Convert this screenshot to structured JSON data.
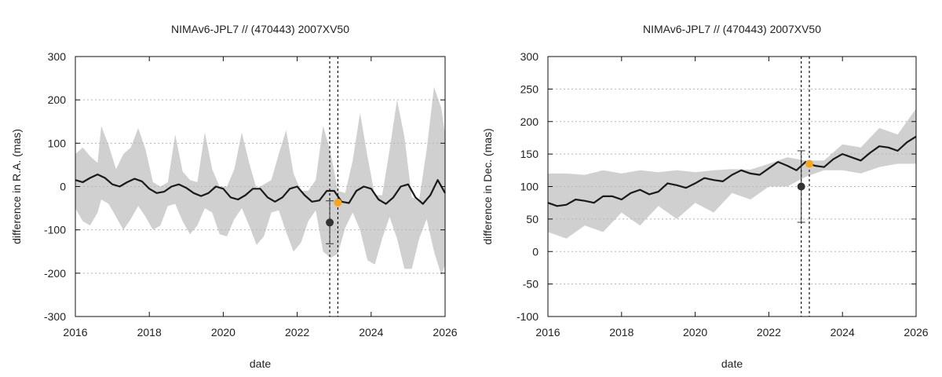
{
  "chart_data": [
    {
      "type": "line",
      "title": "NIMAv6-JPL7 // (470443) 2007XV50",
      "xlabel": "date",
      "ylabel": "difference in R.A. (mas)",
      "xlim": [
        2016,
        2026
      ],
      "ylim": [
        -300,
        300
      ],
      "xticks": [
        2016,
        2018,
        2020,
        2022,
        2024,
        2026
      ],
      "xtick_labels": [
        "2016",
        "2018",
        "2020",
        "2022",
        "2024",
        "2026"
      ],
      "yticks": [
        -300,
        -200,
        -100,
        0,
        100,
        200,
        300
      ],
      "ytick_labels": [
        "-300",
        "-200",
        "-100",
        "0",
        "100",
        "200",
        "300"
      ],
      "grid": "horizontal dotted",
      "series": [
        {
          "name": "uncertainty envelope (upper)",
          "x": [
            2016.0,
            2016.2,
            2016.4,
            2016.6,
            2016.7,
            2016.9,
            2017.1,
            2017.3,
            2017.5,
            2017.7,
            2017.9,
            2018.1,
            2018.3,
            2018.5,
            2018.7,
            2018.9,
            2019.1,
            2019.3,
            2019.5,
            2019.7,
            2019.9,
            2020.1,
            2020.3,
            2020.5,
            2020.7,
            2020.9,
            2021.1,
            2021.3,
            2021.5,
            2021.7,
            2021.9,
            2022.1,
            2022.3,
            2022.5,
            2022.7,
            2022.9,
            2023.1,
            2023.3,
            2023.5,
            2023.7,
            2023.9,
            2024.1,
            2024.3,
            2024.5,
            2024.7,
            2024.9,
            2025.1,
            2025.3,
            2025.5,
            2025.7,
            2025.9,
            2026.0
          ],
          "values": [
            75,
            90,
            70,
            55,
            140,
            95,
            40,
            75,
            90,
            135,
            85,
            10,
            0,
            10,
            120,
            35,
            15,
            10,
            125,
            40,
            0,
            0,
            40,
            125,
            55,
            -5,
            5,
            15,
            75,
            130,
            30,
            -10,
            -10,
            15,
            140,
            80,
            -10,
            -15,
            60,
            170,
            70,
            -20,
            -20,
            85,
            200,
            115,
            -25,
            -30,
            85,
            230,
            180,
            120
          ]
        },
        {
          "name": "uncertainty envelope (lower)",
          "x": [
            2016.0,
            2016.2,
            2016.4,
            2016.6,
            2016.7,
            2016.9,
            2017.1,
            2017.3,
            2017.5,
            2017.7,
            2017.9,
            2018.1,
            2018.3,
            2018.5,
            2018.7,
            2018.9,
            2019.1,
            2019.3,
            2019.5,
            2019.7,
            2019.9,
            2020.1,
            2020.3,
            2020.5,
            2020.7,
            2020.9,
            2021.1,
            2021.3,
            2021.5,
            2021.7,
            2021.9,
            2022.1,
            2022.3,
            2022.5,
            2022.7,
            2022.9,
            2023.1,
            2023.3,
            2023.5,
            2023.7,
            2023.9,
            2024.1,
            2024.3,
            2024.5,
            2024.7,
            2024.9,
            2025.1,
            2025.3,
            2025.5,
            2025.7,
            2025.9,
            2026.0
          ],
          "values": [
            -50,
            -80,
            -90,
            -60,
            -30,
            -40,
            -70,
            -100,
            -75,
            -45,
            -70,
            -100,
            -90,
            -45,
            -40,
            -80,
            -110,
            -90,
            -50,
            -60,
            -110,
            -115,
            -75,
            -50,
            -90,
            -135,
            -115,
            -60,
            -55,
            -105,
            -150,
            -130,
            -80,
            -55,
            -150,
            -165,
            -155,
            -95,
            -60,
            -100,
            -170,
            -180,
            -120,
            -70,
            -120,
            -190,
            -190,
            -120,
            -75,
            -150,
            -205,
            -180
          ]
        },
        {
          "name": "NIMAv6-JPL7 difference",
          "x": [
            2016.0,
            2016.2,
            2016.4,
            2016.6,
            2016.8,
            2017.0,
            2017.2,
            2017.4,
            2017.6,
            2017.8,
            2018.0,
            2018.2,
            2018.4,
            2018.6,
            2018.8,
            2019.0,
            2019.2,
            2019.4,
            2019.6,
            2019.8,
            2020.0,
            2020.2,
            2020.4,
            2020.6,
            2020.8,
            2021.0,
            2021.2,
            2021.4,
            2021.6,
            2021.8,
            2022.0,
            2022.2,
            2022.4,
            2022.6,
            2022.8,
            2023.0,
            2023.2,
            2023.4,
            2023.6,
            2023.8,
            2024.0,
            2024.2,
            2024.4,
            2024.6,
            2024.8,
            2025.0,
            2025.2,
            2025.4,
            2025.6,
            2025.8,
            2026.0
          ],
          "values": [
            15,
            10,
            20,
            28,
            20,
            5,
            0,
            10,
            18,
            12,
            -5,
            -15,
            -12,
            0,
            5,
            -3,
            -15,
            -22,
            -15,
            0,
            -5,
            -25,
            -30,
            -20,
            -5,
            -5,
            -25,
            -35,
            -25,
            -5,
            0,
            -20,
            -35,
            -32,
            -10,
            -10,
            -35,
            -38,
            -10,
            0,
            -5,
            -30,
            -40,
            -25,
            0,
            5,
            -25,
            -40,
            -20,
            15,
            -15
          ]
        }
      ],
      "vlines": [
        2022.88,
        2023.1
      ],
      "points": [
        {
          "name": "observation",
          "x": 2022.88,
          "y": -83,
          "err_low": -132,
          "err_high": -33,
          "color": "#333333"
        },
        {
          "name": "prediction",
          "x": 2023.1,
          "y": -37,
          "color": "#f5a623"
        }
      ],
      "colors": {
        "envelope": "#d0d0d0",
        "line": "#1a1a1a",
        "observation": "#333333",
        "prediction": "#f5a623"
      }
    },
    {
      "type": "line",
      "title": "NIMAv6-JPL7 // (470443) 2007XV50",
      "xlabel": "date",
      "ylabel": "difference in Dec. (mas)",
      "xlim": [
        2016,
        2026
      ],
      "ylim": [
        -100,
        300
      ],
      "xticks": [
        2016,
        2018,
        2020,
        2022,
        2024,
        2026
      ],
      "xtick_labels": [
        "2016",
        "2018",
        "2020",
        "2022",
        "2024",
        "2026"
      ],
      "yticks": [
        -100,
        -50,
        0,
        50,
        100,
        150,
        200,
        250,
        300
      ],
      "ytick_labels": [
        "-100",
        "-50",
        "0",
        "50",
        "100",
        "150",
        "200",
        "250",
        "300"
      ],
      "grid": "horizontal dotted",
      "series": [
        {
          "name": "uncertainty envelope (upper)",
          "x": [
            2016.0,
            2016.5,
            2017.0,
            2017.5,
            2018.0,
            2018.5,
            2019.0,
            2019.5,
            2020.0,
            2020.5,
            2021.0,
            2021.5,
            2022.0,
            2022.5,
            2023.0,
            2023.5,
            2024.0,
            2024.5,
            2025.0,
            2025.5,
            2026.0
          ],
          "values": [
            120,
            120,
            118,
            125,
            120,
            125,
            122,
            125,
            122,
            125,
            127,
            126,
            135,
            145,
            140,
            140,
            165,
            160,
            190,
            180,
            220
          ]
        },
        {
          "name": "uncertainty envelope (lower)",
          "x": [
            2016.0,
            2016.5,
            2017.0,
            2017.5,
            2018.0,
            2018.5,
            2019.0,
            2019.5,
            2020.0,
            2020.5,
            2021.0,
            2021.5,
            2022.0,
            2022.5,
            2023.0,
            2023.5,
            2024.0,
            2024.5,
            2025.0,
            2025.5,
            2026.0
          ],
          "values": [
            30,
            20,
            40,
            30,
            60,
            40,
            70,
            50,
            75,
            60,
            90,
            80,
            100,
            100,
            115,
            125,
            125,
            120,
            130,
            135,
            135
          ]
        },
        {
          "name": "NIMAv6-JPL7 difference",
          "x": [
            2016.0,
            2016.25,
            2016.5,
            2016.75,
            2017.0,
            2017.25,
            2017.5,
            2017.75,
            2018.0,
            2018.25,
            2018.5,
            2018.75,
            2019.0,
            2019.25,
            2019.5,
            2019.75,
            2020.0,
            2020.25,
            2020.5,
            2020.75,
            2021.0,
            2021.25,
            2021.5,
            2021.75,
            2022.0,
            2022.25,
            2022.5,
            2022.75,
            2023.0,
            2023.25,
            2023.5,
            2023.75,
            2024.0,
            2024.25,
            2024.5,
            2024.75,
            2025.0,
            2025.25,
            2025.5,
            2025.75,
            2026.0
          ],
          "values": [
            75,
            70,
            72,
            80,
            78,
            75,
            85,
            85,
            80,
            90,
            95,
            88,
            92,
            105,
            102,
            98,
            105,
            113,
            110,
            108,
            118,
            125,
            120,
            118,
            128,
            138,
            132,
            125,
            138,
            132,
            130,
            142,
            150,
            145,
            140,
            152,
            162,
            160,
            155,
            168,
            177
          ]
        }
      ],
      "vlines": [
        2022.88,
        2023.1
      ],
      "points": [
        {
          "name": "observation",
          "x": 2022.88,
          "y": 100,
          "err_low": 45,
          "err_high": 155,
          "color": "#333333"
        },
        {
          "name": "prediction",
          "x": 2023.1,
          "y": 135,
          "color": "#f5a623"
        }
      ],
      "colors": {
        "envelope": "#d0d0d0",
        "line": "#1a1a1a",
        "observation": "#333333",
        "prediction": "#f5a623"
      }
    }
  ]
}
